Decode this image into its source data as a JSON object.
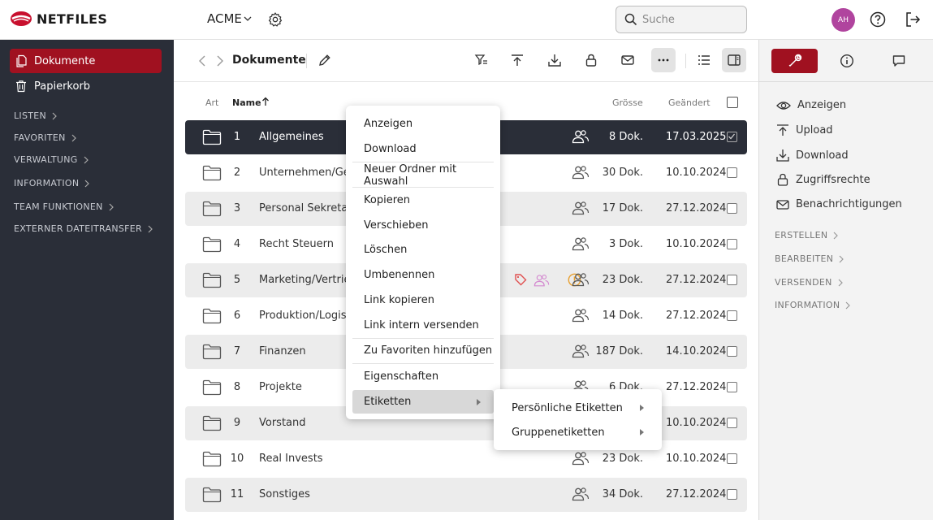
{
  "brand": {
    "name": "NETFILES",
    "color": "#c8102e"
  },
  "header": {
    "org": "ACME",
    "search_placeholder": "Suche",
    "avatar_initials": "AH",
    "avatar_color": "#b0449e"
  },
  "sidebar": {
    "items": [
      {
        "label": "Dokumente",
        "active": true
      },
      {
        "label": "Papierkorb",
        "active": false
      }
    ],
    "sections": [
      "LISTEN",
      "FAVORITEN",
      "VERWALTUNG",
      "INFORMATION",
      "TEAM FUNKTIONEN",
      "EXTERNER DATEITRANSFER"
    ]
  },
  "toolbar": {
    "breadcrumb": "Dokumente"
  },
  "table": {
    "headers": {
      "art": "Art",
      "name": "Name",
      "size": "Grösse",
      "changed": "Geändert"
    },
    "rows": [
      {
        "num": "1",
        "name": "Allgemeines",
        "count": "8 Dok.",
        "date": "17.03.2025",
        "selected": true
      },
      {
        "num": "2",
        "name": "Unternehmen/Gesellschaft",
        "count": "30 Dok.",
        "date": "10.10.2024"
      },
      {
        "num": "3",
        "name": "Personal Sekretariat",
        "count": "17 Dok.",
        "date": "27.12.2024"
      },
      {
        "num": "4",
        "name": "Recht Steuern",
        "count": "3 Dok.",
        "date": "10.10.2024"
      },
      {
        "num": "5",
        "name": "Marketing/Vertrieb",
        "count": "23 Dok.",
        "date": "27.12.2024",
        "tags": true
      },
      {
        "num": "6",
        "name": "Produktion/Logistik",
        "count": "14 Dok.",
        "date": "27.12.2024"
      },
      {
        "num": "7",
        "name": "Finanzen",
        "count": "187 Dok.",
        "date": "14.10.2024"
      },
      {
        "num": "8",
        "name": "Projekte",
        "count": "6 Dok.",
        "date": "27.12.2024"
      },
      {
        "num": "9",
        "name": "Vorstand",
        "count": "",
        "date": "10.10.2024"
      },
      {
        "num": "10",
        "name": "Real Invests",
        "count": "23 Dok.",
        "date": "10.10.2024"
      },
      {
        "num": "11",
        "name": "Sonstiges",
        "count": "34 Dok.",
        "date": "27.12.2024"
      }
    ]
  },
  "context_menu": {
    "items": [
      "Anzeigen",
      "Download",
      "Neuer Ordner mit Auswahl",
      "Kopieren",
      "Verschieben",
      "Löschen",
      "Umbenennen",
      "Link kopieren",
      "Link intern versenden",
      "Zu Favoriten hinzufügen",
      "Eigenschaften",
      "Etiketten"
    ],
    "submenu": [
      "Persönliche Etiketten",
      "Gruppenetiketten"
    ]
  },
  "right_panel": {
    "actions": [
      "Anzeigen",
      "Upload",
      "Download",
      "Zugriffsrechte",
      "Benachrichtigungen"
    ],
    "sections": [
      "ERSTELLEN",
      "BEARBEITEN",
      "VERSENDEN",
      "INFORMATION"
    ]
  },
  "colors": {
    "accent": "#a01120",
    "dark": "#2a2e38",
    "tag_red": "#e05050",
    "tag_pink": "#d48ad0",
    "tag_orange": "#e8a030"
  }
}
